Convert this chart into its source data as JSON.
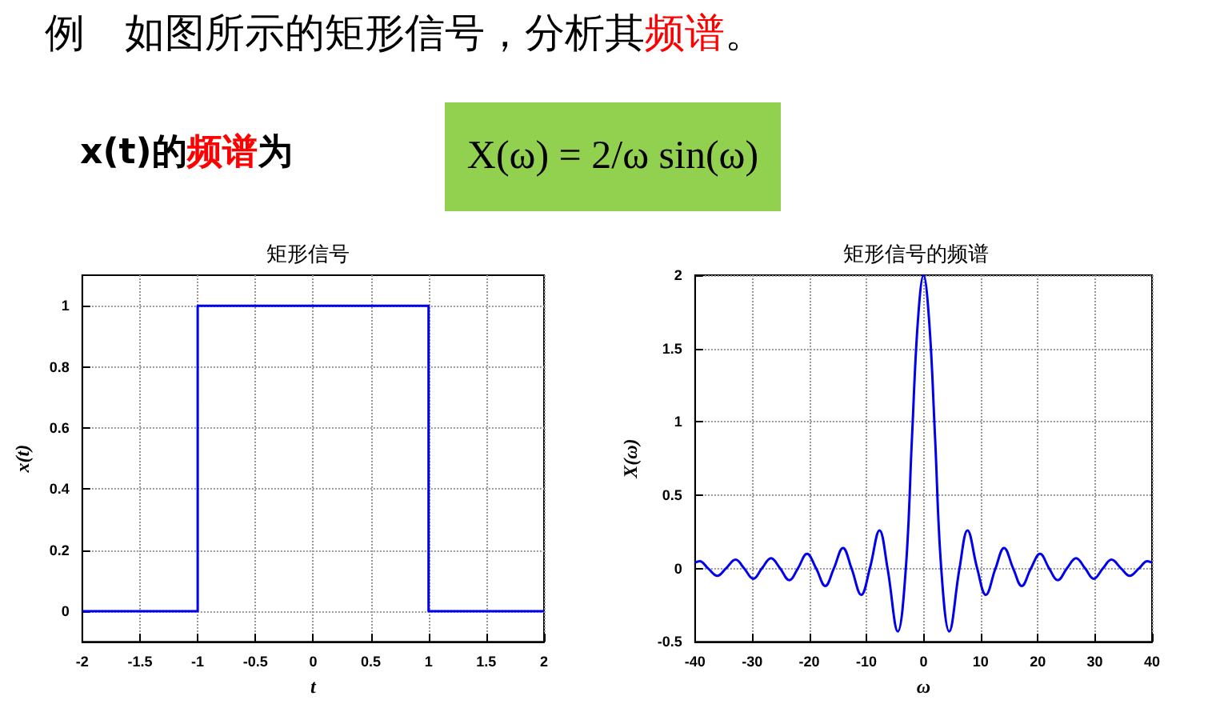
{
  "chart_data": [
    {
      "type": "other",
      "annotations": [
        "例　如图所示的矩形信号，分析其",
        "频谱",
        "。",
        "x(t)的",
        "频谱",
        "为",
        "X(ω) = 2/ω sin(ω)"
      ],
      "colors": [
        "#000000",
        "#ff0000",
        "#000000",
        "#000000",
        "#ff0000",
        "#000000",
        "#000000"
      ]
    },
    {
      "type": "line",
      "title": "矩形信号",
      "xlabel": "t",
      "ylabel": "x(t)",
      "x": [
        -2,
        -1,
        -1,
        1,
        1,
        2
      ],
      "values": [
        0,
        0,
        1,
        1,
        0,
        0
      ],
      "color": "#0000ee",
      "xlim": [
        -2,
        2
      ],
      "xticks": [
        -2,
        -1.5,
        -1,
        -0.5,
        0,
        0.5,
        1,
        1.5,
        2
      ],
      "ylim": [
        -0.1,
        1.1
      ],
      "yticks": [
        0,
        0.2,
        0.4,
        0.6,
        0.8,
        1
      ],
      "grid": true
    },
    {
      "type": "line",
      "title": "矩形信号的频谱",
      "xlabel": "ω",
      "ylabel": "X(ω)",
      "x": [
        -40,
        -39.2,
        -37.7,
        -36.1,
        -34.6,
        -32.9,
        -31.4,
        -29.8,
        -28.3,
        -26.7,
        -25.1,
        -23.5,
        -22,
        -20.4,
        -18.8,
        -17.2,
        -15.7,
        -14.1,
        -12.6,
        -10.9,
        -9.4,
        -7.7,
        -6.3,
        -4.5,
        -3.1,
        -2,
        -1,
        0,
        1,
        2,
        3.1,
        4.5,
        6.3,
        7.7,
        9.4,
        10.9,
        12.6,
        14.1,
        15.7,
        17.2,
        18.8,
        20.4,
        22,
        23.5,
        25.1,
        26.7,
        28.3,
        29.8,
        31.4,
        32.9,
        34.6,
        36.1,
        37.7,
        39.2,
        40
      ],
      "values": [
        0.04,
        0.05,
        0,
        -0.05,
        0,
        0.06,
        0,
        -0.07,
        0,
        0.07,
        0,
        -0.08,
        0,
        0.1,
        0,
        -0.12,
        0,
        0.14,
        0,
        -0.18,
        0,
        0.26,
        0,
        -0.43,
        0,
        0.91,
        1.68,
        2,
        1.68,
        0.91,
        0,
        -0.43,
        0,
        0.26,
        0,
        -0.18,
        0,
        0.14,
        0,
        -0.12,
        0,
        0.1,
        0,
        -0.08,
        0,
        0.07,
        0,
        -0.07,
        0,
        0.06,
        0,
        -0.05,
        0,
        0.05,
        0.04
      ],
      "color": "#0000ee",
      "xlim": [
        -40,
        40
      ],
      "xticks": [
        -40,
        -30,
        -20,
        -10,
        0,
        10,
        20,
        30,
        40
      ],
      "ylim": [
        -0.5,
        2
      ],
      "yticks": [
        -0.5,
        0,
        0.5,
        1,
        1.5,
        2
      ],
      "grid": true
    }
  ]
}
